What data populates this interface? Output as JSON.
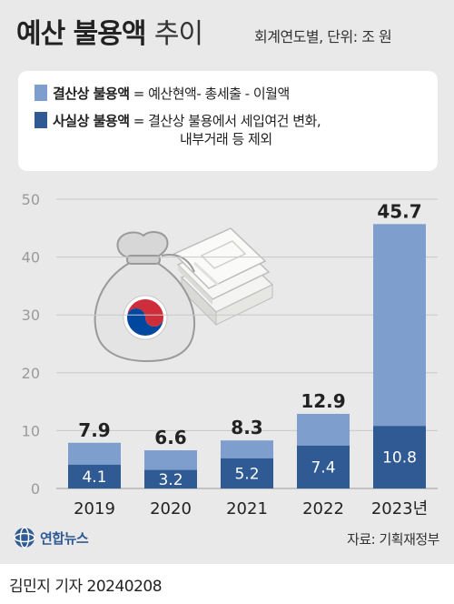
{
  "header": {
    "title_bold": "예산 불용액",
    "title_light": "추이",
    "subtitle": "회계연도별, 단위: 조 원"
  },
  "legend": {
    "items": [
      {
        "name": "결산상 불용액",
        "desc": " = 예산현액- 총세출 - 이월액",
        "color": "#7e9fcd"
      },
      {
        "name": "사실상 불용액",
        "desc": " = 결산상 불용에서 세입여건 변화,",
        "desc2": "내부거래 등 제외",
        "color": "#2f5a93"
      }
    ]
  },
  "chart_data": {
    "type": "bar",
    "categories": [
      "2019",
      "2020",
      "2021",
      "2022",
      "2023년"
    ],
    "series": [
      {
        "name": "결산상 불용액",
        "values": [
          7.9,
          6.6,
          8.3,
          12.9,
          45.7
        ],
        "color": "#7e9fcd"
      },
      {
        "name": "사실상 불용액",
        "values": [
          4.1,
          3.2,
          5.2,
          7.4,
          10.8
        ],
        "color": "#2f5a93"
      }
    ],
    "value_labels": {
      "series_0": [
        "7.9",
        "6.6",
        "8.3",
        "12.9",
        "45.7"
      ],
      "series_1": [
        "4.1",
        "3.2",
        "5.2",
        "7.4",
        "10.8"
      ]
    },
    "yticks": [
      "0",
      "10",
      "20",
      "30",
      "40",
      "50"
    ],
    "ylim": [
      0,
      50
    ],
    "grid": true,
    "overlapping": true
  },
  "footer": {
    "logo_text": "연합뉴스",
    "source": "자료: 기획재정부",
    "byline": "김민지 기자  20240208"
  }
}
